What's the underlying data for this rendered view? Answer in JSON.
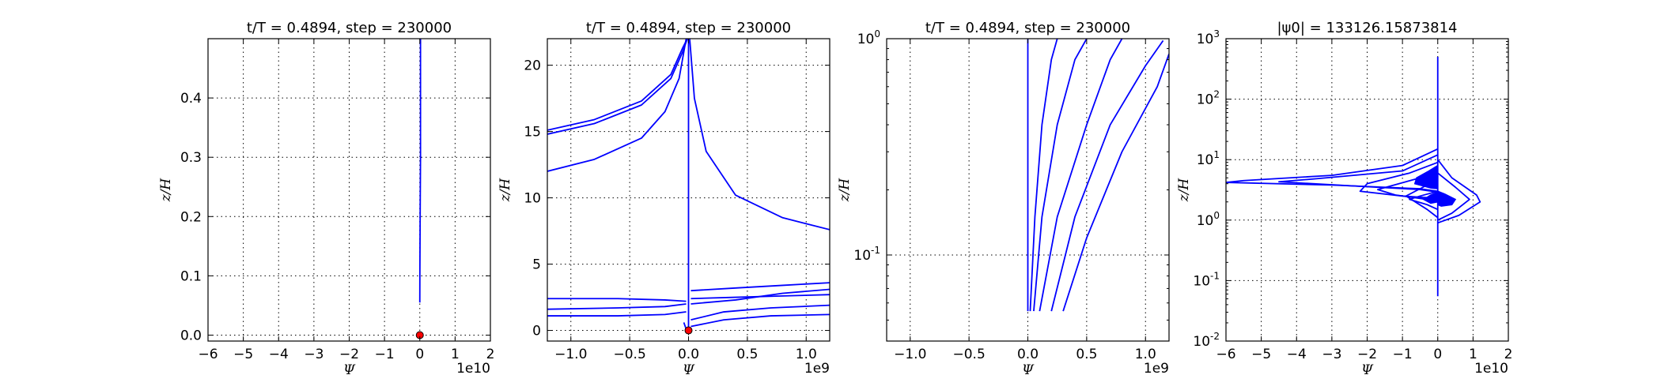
{
  "chart_data": [
    {
      "type": "line",
      "title": "t/T = 0.4894, step = 230000",
      "xlabel": "Ψ",
      "ylabel": "z/H",
      "x_offset_label": "1e10",
      "xlim": [
        -6,
        2
      ],
      "ylim": [
        -0.01,
        0.5
      ],
      "xticks": [
        -6,
        -5,
        -4,
        -3,
        -2,
        -1,
        0,
        1,
        2
      ],
      "xticklabels": [
        "−6",
        "−5",
        "−4",
        "−3",
        "−2",
        "−1",
        "0",
        "1",
        "2"
      ],
      "yticks": [
        0.0,
        0.1,
        0.2,
        0.3,
        0.4
      ],
      "yticklabels": [
        "0.0",
        "0.1",
        "0.2",
        "0.3",
        "0.4"
      ],
      "grid": true,
      "line_color": "#0000ff",
      "marker_color": "#ff0000",
      "series": [
        {
          "x": [
            0,
            0.002,
            0.01,
            0.02,
            0.02,
            0.02
          ],
          "y": [
            0.055,
            0.1,
            0.2,
            0.3,
            0.4,
            0.5
          ]
        }
      ],
      "marker": {
        "x": 0,
        "y": 0
      }
    },
    {
      "type": "line",
      "title": "t/T = 0.4894, step = 230000",
      "xlabel": "Ψ",
      "ylabel": "z/H",
      "x_offset_label": "1e9",
      "xlim": [
        -1.2,
        1.2
      ],
      "ylim": [
        -0.8,
        22
      ],
      "xticks": [
        -1.0,
        -0.5,
        0.0,
        0.5,
        1.0
      ],
      "xticklabels": [
        "−1.0",
        "−0.5",
        "0.0",
        "0.5",
        "1.0"
      ],
      "yticks": [
        0,
        5,
        10,
        15,
        20
      ],
      "yticklabels": [
        "0",
        "5",
        "10",
        "15",
        "20"
      ],
      "grid": true,
      "line_color": "#0000ff",
      "marker_color": "#ff0000",
      "series": [
        {
          "x": [
            -1.2,
            -0.8,
            -0.4,
            -0.15,
            -0.05,
            -0.01
          ],
          "y": [
            14.8,
            15.6,
            17.0,
            19.0,
            21.0,
            22.0
          ]
        },
        {
          "x": [
            -1.2,
            -0.8,
            -0.4,
            -0.15,
            -0.05,
            -0.01
          ],
          "y": [
            15.1,
            15.9,
            17.3,
            19.3,
            21.3,
            22.0
          ]
        },
        {
          "x": [
            -1.2,
            -0.8,
            -0.4,
            -0.2,
            -0.08,
            -0.02
          ],
          "y": [
            12.0,
            12.9,
            14.5,
            16.5,
            19.0,
            22.0
          ]
        },
        {
          "x": [
            0.01,
            0.05,
            0.15,
            0.4,
            0.8,
            1.2
          ],
          "y": [
            22.0,
            17.5,
            13.5,
            10.2,
            8.5,
            7.6
          ]
        },
        {
          "x": [
            0.0,
            0.0
          ],
          "y": [
            0.0,
            22.0
          ]
        },
        {
          "x": [
            -1.2,
            -0.6,
            -0.2,
            -0.02
          ],
          "y": [
            2.4,
            2.4,
            2.3,
            2.2
          ]
        },
        {
          "x": [
            -1.2,
            -0.6,
            -0.2,
            -0.02
          ],
          "y": [
            1.6,
            1.7,
            1.8,
            2.0
          ]
        },
        {
          "x": [
            -1.2,
            -0.6,
            -0.2,
            -0.02
          ],
          "y": [
            1.1,
            1.1,
            1.2,
            1.4
          ]
        },
        {
          "x": [
            -0.04,
            -0.02,
            0.0
          ],
          "y": [
            0.6,
            0.1,
            0.0
          ]
        },
        {
          "x": [
            0.02,
            0.4,
            0.8,
            1.2
          ],
          "y": [
            2.4,
            2.5,
            2.6,
            2.7
          ]
        },
        {
          "x": [
            0.02,
            0.4,
            0.8,
            1.2
          ],
          "y": [
            3.0,
            3.2,
            3.4,
            3.6
          ]
        },
        {
          "x": [
            0.02,
            0.4,
            0.8,
            1.2
          ],
          "y": [
            2.0,
            2.3,
            2.8,
            3.1
          ]
        },
        {
          "x": [
            0.02,
            0.3,
            0.7,
            1.2
          ],
          "y": [
            0.3,
            0.8,
            1.1,
            1.2
          ]
        },
        {
          "x": [
            0.02,
            0.3,
            0.7,
            1.2
          ],
          "y": [
            0.8,
            1.4,
            1.7,
            1.9
          ]
        }
      ],
      "marker": {
        "x": 0,
        "y": 0
      }
    },
    {
      "type": "line",
      "title": "t/T = 0.4894, step = 230000",
      "xlabel": "Ψ",
      "ylabel": "z/H",
      "x_offset_label": "1e9",
      "yscale": "log",
      "xlim": [
        -1.2,
        1.2
      ],
      "ylim": [
        0.04,
        1.0
      ],
      "xticks": [
        -1.0,
        -0.5,
        0.0,
        0.5,
        1.0
      ],
      "xticklabels": [
        "−1.0",
        "−0.5",
        "0.0",
        "0.5",
        "1.0"
      ],
      "yticks": [
        0.1,
        1.0
      ],
      "ytickbase": [
        "10",
        "10"
      ],
      "ytickexp": [
        "-1",
        "0"
      ],
      "grid": true,
      "line_color": "#0000ff",
      "series": [
        {
          "x": [
            0.0,
            0.0,
            0.0
          ],
          "y": [
            0.055,
            0.3,
            1.0
          ]
        },
        {
          "x": [
            0.02,
            0.06,
            0.12,
            0.2,
            0.25
          ],
          "y": [
            0.055,
            0.15,
            0.4,
            0.8,
            1.0
          ]
        },
        {
          "x": [
            0.05,
            0.12,
            0.25,
            0.4,
            0.5
          ],
          "y": [
            0.055,
            0.15,
            0.4,
            0.8,
            1.0
          ]
        },
        {
          "x": [
            0.1,
            0.25,
            0.5,
            0.7,
            0.8
          ],
          "y": [
            0.055,
            0.15,
            0.4,
            0.8,
            1.0
          ]
        },
        {
          "x": [
            0.2,
            0.4,
            0.7,
            1.0,
            1.15
          ],
          "y": [
            0.055,
            0.15,
            0.4,
            0.75,
            0.98
          ]
        },
        {
          "x": [
            0.3,
            0.5,
            0.8,
            1.1,
            1.2
          ],
          "y": [
            0.055,
            0.12,
            0.3,
            0.6,
            0.85
          ]
        }
      ]
    },
    {
      "type": "line",
      "title": "|ψ0| = 133126.15873814",
      "xlabel": "Ψ",
      "ylabel": "z/H",
      "x_offset_label": "1e10",
      "yscale": "log",
      "xlim": [
        -6,
        2
      ],
      "ylim": [
        0.01,
        1000
      ],
      "xticks": [
        -6,
        -5,
        -4,
        -3,
        -2,
        -1,
        0,
        1,
        2
      ],
      "xticklabels": [
        "−6",
        "−5",
        "−4",
        "−3",
        "−2",
        "−1",
        "0",
        "1",
        "2"
      ],
      "yticks": [
        0.01,
        0.1,
        1,
        10,
        100,
        1000
      ],
      "ytickbase": [
        "10",
        "10",
        "10",
        "10",
        "10",
        "10"
      ],
      "ytickexp": [
        "-2",
        "-1",
        "0",
        "1",
        "2",
        "3"
      ],
      "grid": true,
      "line_color": "#0000ff",
      "series": [
        {
          "x": [
            0.0,
            0.0,
            0.0
          ],
          "y": [
            0.055,
            1.0,
            500
          ]
        },
        {
          "x": [
            0.0,
            -1.0,
            -3.0,
            -5.5,
            -6.0,
            -3.0,
            -0.5,
            0.0
          ],
          "y": [
            15,
            8,
            5.5,
            4.5,
            4.2,
            3.8,
            3.3,
            3.0
          ]
        },
        {
          "x": [
            0.0,
            -1.0,
            -3.5,
            -4.5,
            -2.5,
            -0.5,
            0.0
          ],
          "y": [
            12,
            6.5,
            4.8,
            4.3,
            3.7,
            3.2,
            2.9
          ]
        },
        {
          "x": [
            0.0,
            -0.8,
            -2.0,
            -2.2,
            -1.0,
            0.0
          ],
          "y": [
            9,
            6,
            4.0,
            3.0,
            2.5,
            2.3
          ]
        },
        {
          "x": [
            0.0,
            -0.5,
            -1.7,
            -1.2,
            -0.3,
            0.0
          ],
          "y": [
            7,
            5,
            3.2,
            2.6,
            2.2,
            2.0
          ]
        },
        {
          "x": [
            0.0,
            0.4,
            1.1,
            1.2,
            0.6,
            0.0
          ],
          "y": [
            10,
            5,
            2.6,
            2.0,
            1.2,
            0.9
          ]
        },
        {
          "x": [
            0.0,
            0.5,
            0.9,
            0.4,
            0.0
          ],
          "y": [
            6,
            3.5,
            2.2,
            1.3,
            1.0
          ]
        },
        {
          "x": [
            0.0,
            -0.3,
            -0.9,
            -0.3,
            0.0
          ],
          "y": [
            5,
            3.8,
            2.5,
            1.5,
            1.1
          ]
        },
        {
          "x": [
            0.0,
            -0.5,
            -0.8,
            -0.3,
            0.0
          ],
          "y": [
            3.0,
            2.5,
            2.2,
            1.8,
            1.5
          ]
        }
      ],
      "fills": [
        {
          "x": [
            0.0,
            -0.25,
            -0.6,
            -0.65,
            -0.2,
            0.0
          ],
          "y": [
            8.0,
            6.5,
            5.0,
            4.0,
            3.4,
            3.3
          ]
        },
        {
          "x": [
            0.0,
            0.2,
            0.5,
            0.4,
            0.1,
            0.0
          ],
          "y": [
            3.0,
            2.7,
            2.2,
            1.8,
            1.7,
            1.8
          ]
        },
        {
          "x": [
            0.0,
            -0.2,
            -0.4,
            -0.2,
            0.0
          ],
          "y": [
            2.9,
            2.6,
            2.2,
            1.9,
            2.0
          ]
        }
      ]
    }
  ]
}
